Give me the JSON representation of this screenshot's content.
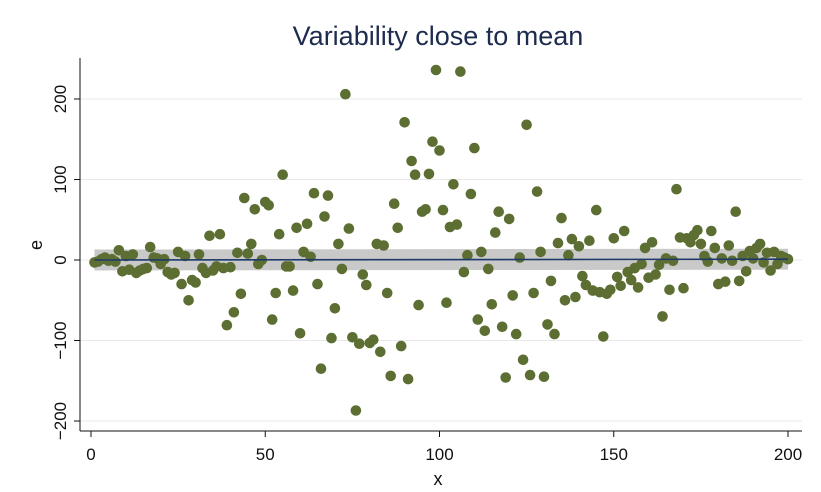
{
  "chart_data": {
    "type": "scatter",
    "title": "Variability close to mean",
    "xlabel": "x",
    "ylabel": "e",
    "xlim": [
      0,
      200
    ],
    "ylim": [
      -220,
      250
    ],
    "xticks": [
      0,
      50,
      100,
      150,
      200
    ],
    "yticks": [
      -200,
      -100,
      0,
      100,
      200
    ],
    "xtick_labels": [
      "0",
      "50",
      "100",
      "150",
      "200"
    ],
    "ytick_labels": [
      "−200",
      "−100",
      "0",
      "100",
      "200"
    ],
    "grid": true,
    "colors": {
      "points": "#5c6e31",
      "fit_line": "#1f3a6a",
      "ci_band": "#c0c0c0",
      "grid": "#e8e8e8",
      "title": "#1d2b4e"
    },
    "fit": {
      "x": [
        1,
        200
      ],
      "y": [
        0,
        1
      ],
      "ci_halfwidth": 13
    },
    "series": [
      {
        "name": "e",
        "points": [
          [
            1,
            -3
          ],
          [
            2,
            -2
          ],
          [
            3,
            1
          ],
          [
            4,
            3
          ],
          [
            5,
            -1
          ],
          [
            6,
            1
          ],
          [
            7,
            -2
          ],
          [
            8,
            12
          ],
          [
            9,
            -14
          ],
          [
            10,
            5
          ],
          [
            11,
            -12
          ],
          [
            12,
            7
          ],
          [
            13,
            -16
          ],
          [
            14,
            -13
          ],
          [
            15,
            -11
          ],
          [
            16,
            -10
          ],
          [
            17,
            16
          ],
          [
            18,
            3
          ],
          [
            19,
            2
          ],
          [
            20,
            -5
          ],
          [
            21,
            1
          ],
          [
            22,
            -15
          ],
          [
            23,
            -18
          ],
          [
            24,
            -16
          ],
          [
            25,
            10
          ],
          [
            26,
            -30
          ],
          [
            27,
            5
          ],
          [
            28,
            -50
          ],
          [
            29,
            -25
          ],
          [
            30,
            -28
          ],
          [
            31,
            7
          ],
          [
            32,
            -10
          ],
          [
            33,
            -16
          ],
          [
            34,
            30
          ],
          [
            35,
            -13
          ],
          [
            36,
            -8
          ],
          [
            37,
            32
          ],
          [
            38,
            -10
          ],
          [
            39,
            -81
          ],
          [
            40,
            -9
          ],
          [
            41,
            -65
          ],
          [
            42,
            9
          ],
          [
            43,
            -42
          ],
          [
            44,
            77
          ],
          [
            45,
            8
          ],
          [
            46,
            20
          ],
          [
            47,
            63
          ],
          [
            48,
            -5
          ],
          [
            49,
            0
          ],
          [
            50,
            72
          ],
          [
            51,
            68
          ],
          [
            52,
            -74
          ],
          [
            53,
            -41
          ],
          [
            54,
            32
          ],
          [
            55,
            106
          ],
          [
            56,
            -8
          ],
          [
            57,
            -8
          ],
          [
            58,
            -38
          ],
          [
            59,
            40
          ],
          [
            60,
            -91
          ],
          [
            61,
            10
          ],
          [
            62,
            45
          ],
          [
            63,
            4
          ],
          [
            64,
            83
          ],
          [
            65,
            -30
          ],
          [
            66,
            -135
          ],
          [
            67,
            54
          ],
          [
            68,
            80
          ],
          [
            69,
            -97
          ],
          [
            70,
            -60
          ],
          [
            71,
            20
          ],
          [
            72,
            -11
          ],
          [
            73,
            206
          ],
          [
            74,
            39
          ],
          [
            75,
            -96
          ],
          [
            76,
            -187
          ],
          [
            77,
            -104
          ],
          [
            78,
            -18
          ],
          [
            79,
            -31
          ],
          [
            80,
            -103
          ],
          [
            81,
            -99
          ],
          [
            82,
            20
          ],
          [
            83,
            -114
          ],
          [
            84,
            18
          ],
          [
            85,
            -41
          ],
          [
            86,
            -144
          ],
          [
            87,
            70
          ],
          [
            88,
            40
          ],
          [
            89,
            -107
          ],
          [
            90,
            171
          ],
          [
            91,
            -148
          ],
          [
            92,
            123
          ],
          [
            93,
            106
          ],
          [
            94,
            -56
          ],
          [
            95,
            60
          ],
          [
            96,
            63
          ],
          [
            97,
            107
          ],
          [
            98,
            147
          ],
          [
            99,
            236
          ],
          [
            100,
            136
          ],
          [
            101,
            62
          ],
          [
            102,
            -53
          ],
          [
            103,
            41
          ],
          [
            104,
            94
          ],
          [
            105,
            44
          ],
          [
            106,
            234
          ],
          [
            107,
            -15
          ],
          [
            108,
            6
          ],
          [
            109,
            82
          ],
          [
            110,
            139
          ],
          [
            111,
            -74
          ],
          [
            112,
            10
          ],
          [
            113,
            -88
          ],
          [
            114,
            -11
          ],
          [
            115,
            -55
          ],
          [
            116,
            34
          ],
          [
            117,
            60
          ],
          [
            118,
            -83
          ],
          [
            119,
            -146
          ],
          [
            120,
            51
          ],
          [
            121,
            -44
          ],
          [
            122,
            -92
          ],
          [
            123,
            3
          ],
          [
            124,
            -124
          ],
          [
            125,
            168
          ],
          [
            126,
            -143
          ],
          [
            127,
            -41
          ],
          [
            128,
            85
          ],
          [
            129,
            10
          ],
          [
            130,
            -145
          ],
          [
            131,
            -80
          ],
          [
            132,
            -26
          ],
          [
            133,
            -92
          ],
          [
            134,
            21
          ],
          [
            135,
            52
          ],
          [
            136,
            -50
          ],
          [
            137,
            6
          ],
          [
            138,
            26
          ],
          [
            139,
            -46
          ],
          [
            140,
            17
          ],
          [
            141,
            -20
          ],
          [
            142,
            -31
          ],
          [
            143,
            24
          ],
          [
            144,
            -38
          ],
          [
            145,
            62
          ],
          [
            146,
            -40
          ],
          [
            147,
            -95
          ],
          [
            148,
            -42
          ],
          [
            149,
            -37
          ],
          [
            150,
            27
          ],
          [
            151,
            -21
          ],
          [
            152,
            -32
          ],
          [
            153,
            36
          ],
          [
            154,
            -15
          ],
          [
            155,
            -25
          ],
          [
            156,
            -10
          ],
          [
            157,
            -34
          ],
          [
            158,
            -5
          ],
          [
            159,
            15
          ],
          [
            160,
            -22
          ],
          [
            161,
            22
          ],
          [
            162,
            -18
          ],
          [
            163,
            -6
          ],
          [
            164,
            -70
          ],
          [
            165,
            2
          ],
          [
            166,
            -37
          ],
          [
            167,
            -1
          ],
          [
            168,
            88
          ],
          [
            169,
            28
          ],
          [
            170,
            -35
          ],
          [
            171,
            27
          ],
          [
            172,
            22
          ],
          [
            173,
            31
          ],
          [
            174,
            37
          ],
          [
            175,
            20
          ],
          [
            176,
            5
          ],
          [
            177,
            -2
          ],
          [
            178,
            36
          ],
          [
            179,
            15
          ],
          [
            180,
            -30
          ],
          [
            181,
            2
          ],
          [
            182,
            -27
          ],
          [
            183,
            18
          ],
          [
            184,
            -1
          ],
          [
            185,
            60
          ],
          [
            186,
            -26
          ],
          [
            187,
            5
          ],
          [
            188,
            -14
          ],
          [
            189,
            11
          ],
          [
            190,
            2
          ],
          [
            191,
            15
          ],
          [
            192,
            20
          ],
          [
            193,
            -3
          ],
          [
            194,
            9
          ],
          [
            195,
            -13
          ],
          [
            196,
            10
          ],
          [
            197,
            -5
          ],
          [
            198,
            5
          ],
          [
            199,
            3
          ],
          [
            200,
            1
          ]
        ]
      }
    ]
  }
}
